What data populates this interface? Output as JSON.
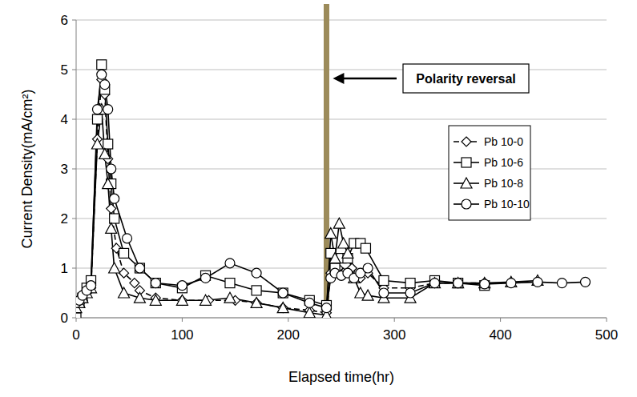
{
  "chart_data": {
    "type": "line",
    "x_label": "Elapsed time(hr)",
    "y_label": "Current Density(mA/cm²)",
    "xlim": [
      0,
      500
    ],
    "xticks": [
      0,
      100,
      200,
      300,
      400,
      500
    ],
    "ylim": [
      0,
      6
    ],
    "yticks": [
      0,
      1,
      2,
      3,
      4,
      5,
      6
    ],
    "grid": true,
    "legend": "upper right",
    "annotations": [
      {
        "text": "Polarity reversal",
        "x": 236,
        "color": "#9c8b5a"
      }
    ],
    "series": [
      {
        "name": "Pb 10-0",
        "color": "#000000",
        "marker": "diamond",
        "line_style": "dashed",
        "x": [
          0,
          3,
          6,
          10,
          14,
          20,
          24,
          27,
          30,
          33,
          38,
          45,
          55,
          60,
          75,
          100,
          125,
          150,
          170,
          195,
          220,
          236,
          240,
          243,
          247,
          252,
          260,
          268,
          275,
          290,
          315,
          338,
          360,
          385
        ],
        "values": [
          0.25,
          0.3,
          0.35,
          0.5,
          0.6,
          3.6,
          4.8,
          4.5,
          3.2,
          2.2,
          1.4,
          0.9,
          0.7,
          0.55,
          0.4,
          0.35,
          0.35,
          0.35,
          0.3,
          0.2,
          0.15,
          0.1,
          0.9,
          1.1,
          1.0,
          0.9,
          1.0,
          0.8,
          0.9,
          0.6,
          0.6,
          0.7,
          0.7,
          0.7
        ]
      },
      {
        "name": "Pb 10-6",
        "color": "#000000",
        "marker": "square",
        "line_style": "solid",
        "x": [
          0,
          3,
          6,
          10,
          14,
          20,
          24,
          27,
          30,
          33,
          36,
          45,
          60,
          75,
          100,
          122,
          145,
          170,
          195,
          220,
          236,
          240,
          244,
          250,
          256,
          262,
          268,
          273,
          290,
          315,
          338,
          360,
          385
        ],
        "values": [
          0.0,
          0.3,
          0.4,
          0.6,
          0.75,
          4.0,
          5.1,
          4.6,
          3.5,
          2.7,
          2.0,
          1.3,
          1.0,
          0.7,
          0.6,
          0.85,
          0.7,
          0.55,
          0.5,
          0.35,
          0.25,
          1.3,
          1.0,
          1.2,
          1.2,
          1.5,
          1.5,
          1.4,
          0.75,
          0.7,
          0.75,
          0.7,
          0.65
        ]
      },
      {
        "name": "Pb 10-8",
        "color": "#000000",
        "marker": "triangle",
        "line_style": "solid",
        "x": [
          0,
          3,
          6,
          10,
          14,
          20,
          24,
          27,
          30,
          33,
          36,
          45,
          60,
          75,
          100,
          122,
          145,
          170,
          195,
          220,
          236,
          240,
          244,
          248,
          252,
          256,
          262,
          268,
          275,
          290,
          315,
          338,
          360,
          385,
          410,
          435
        ],
        "values": [
          0.2,
          0.3,
          0.4,
          0.5,
          0.6,
          3.5,
          4.2,
          3.3,
          2.7,
          1.8,
          1.0,
          0.5,
          0.4,
          0.35,
          0.35,
          0.35,
          0.4,
          0.3,
          0.2,
          0.1,
          0.05,
          1.7,
          1.2,
          1.9,
          1.5,
          1.3,
          0.8,
          0.5,
          0.45,
          0.4,
          0.4,
          0.7,
          0.7,
          0.7,
          0.72,
          0.75
        ]
      },
      {
        "name": "Pb 10-10",
        "color": "#000000",
        "marker": "circle",
        "line_style": "solid",
        "x": [
          0,
          3,
          6,
          10,
          14,
          20,
          24,
          27,
          30,
          33,
          36,
          48,
          60,
          75,
          100,
          122,
          145,
          170,
          195,
          220,
          236,
          240,
          244,
          250,
          256,
          262,
          268,
          275,
          290,
          315,
          338,
          360,
          385,
          410,
          435,
          458,
          480
        ],
        "values": [
          0.3,
          0.35,
          0.45,
          0.55,
          0.65,
          4.2,
          4.9,
          4.7,
          4.2,
          3.0,
          2.4,
          1.6,
          1.0,
          0.7,
          0.65,
          0.8,
          1.1,
          0.9,
          0.5,
          0.3,
          0.2,
          0.8,
          0.9,
          0.85,
          0.9,
          0.8,
          0.9,
          1.0,
          0.5,
          0.5,
          0.7,
          0.7,
          0.68,
          0.7,
          0.72,
          0.7,
          0.72
        ]
      }
    ]
  }
}
